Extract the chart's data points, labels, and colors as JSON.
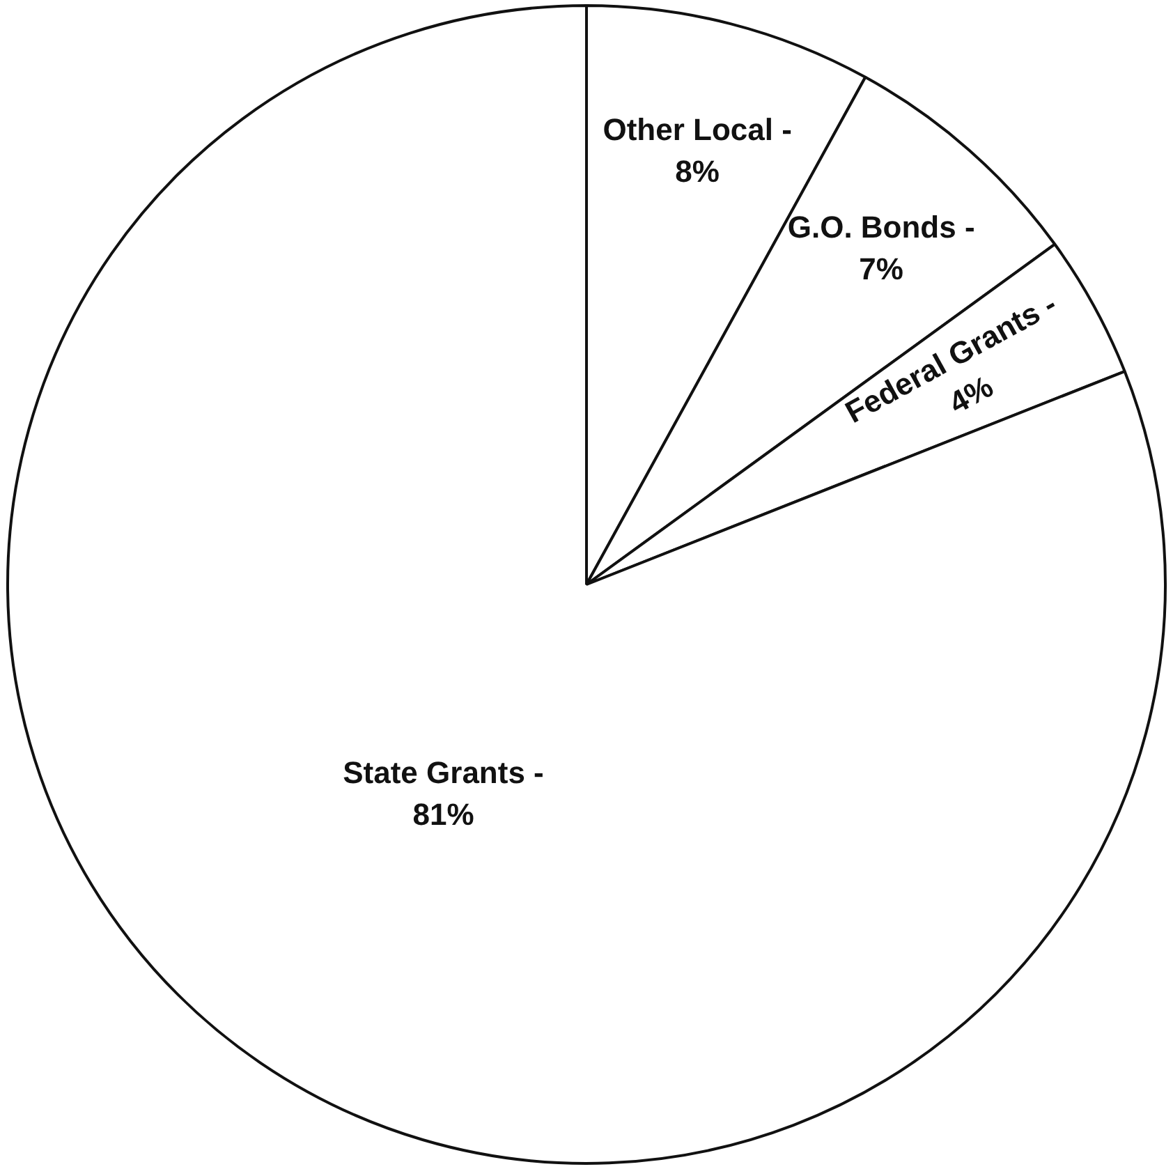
{
  "chart_data": {
    "type": "pie",
    "categories": [
      "Other Local -",
      "G.O. Bonds -",
      "Federal Grants -",
      "State Grants -"
    ],
    "values": [
      8,
      7,
      4,
      81
    ],
    "colors": [
      "#ffffff",
      "#ffffff",
      "#ffffff",
      "#ffffff"
    ],
    "value_labels": [
      "8%",
      "7%",
      "4%",
      "81%"
    ],
    "legend": false
  }
}
